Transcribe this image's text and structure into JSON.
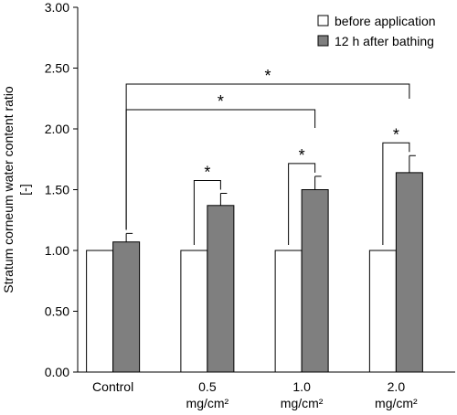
{
  "chart_data": {
    "type": "bar",
    "title": "",
    "xlabel": "",
    "ylabel": "Stratum corneum water content ratio",
    "ylabel_unit": "[-]",
    "ylim": [
      0,
      3
    ],
    "yticks": [
      "0.00",
      "0.50",
      "1.00",
      "1.50",
      "2.00",
      "2.50",
      "3.00"
    ],
    "categories": [
      {
        "line1": "Control",
        "line2": ""
      },
      {
        "line1": "0.5",
        "line2": "mg/cm²"
      },
      {
        "line1": "1.0",
        "line2": "mg/cm²"
      },
      {
        "line1": "2.0",
        "line2": "mg/cm²"
      }
    ],
    "series": [
      {
        "name": "before application",
        "color": "#ffffff",
        "values": [
          1.0,
          1.0,
          1.0,
          1.0
        ],
        "errors": [
          0,
          0,
          0,
          0
        ]
      },
      {
        "name": "12 h after bathing",
        "color": "#7f7f7f",
        "values": [
          1.07,
          1.37,
          1.5,
          1.64
        ],
        "errors": [
          0.07,
          0.1,
          0.11,
          0.14
        ]
      }
    ],
    "legend_position": "top-right",
    "grid": false,
    "significance": [
      {
        "type": "within",
        "category": 1,
        "label": "*"
      },
      {
        "type": "within",
        "category": 2,
        "label": "*"
      },
      {
        "type": "within",
        "category": 3,
        "label": "*"
      },
      {
        "type": "between",
        "from": 0,
        "to": 2,
        "label": "*"
      },
      {
        "type": "between",
        "from": 0,
        "to": 3,
        "label": "*"
      }
    ]
  }
}
